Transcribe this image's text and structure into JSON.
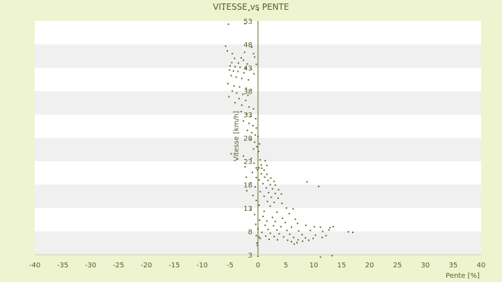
{
  "chart_data": {
    "type": "scatter",
    "title": "VITESSE vs PENTE",
    "xlabel": "Pente [%]",
    "ylabel": "Vitesse [km/h]",
    "xlim": [
      -40,
      40
    ],
    "ylim": [
      3,
      53
    ],
    "x_ticks": [
      "-40",
      "-35",
      "-30",
      "-25",
      "-20",
      "-15",
      "-10",
      "-5",
      "0",
      "5",
      "10",
      "15",
      "20",
      "25",
      "30",
      "35",
      "40"
    ],
    "y_ticks": [
      "3",
      "8",
      "13",
      "18",
      "23",
      "28",
      "33",
      "38",
      "43",
      "48",
      "53"
    ],
    "grid": "alternating horizontal bands",
    "legend": "none",
    "colors": {
      "background": "#eef4cf",
      "band_light": "#ffffff",
      "band_dark": "#f0f0f0",
      "axis": "#5d6b20",
      "points": "#5d6b20",
      "text": "#545e2a"
    },
    "points": [
      [
        -6.2,
        55.5
      ],
      [
        0,
        55.3
      ],
      [
        -5.3,
        52.3
      ],
      [
        -2.3,
        52.4
      ],
      [
        -1.6,
        55.3
      ],
      [
        -5.8,
        47.6
      ],
      [
        -5.5,
        46.6
      ],
      [
        -1.1,
        47.4
      ],
      [
        -4.6,
        46.0
      ],
      [
        -2.4,
        46.3
      ],
      [
        -0.8,
        46.0
      ],
      [
        -0.6,
        45.3
      ],
      [
        -4.2,
        45.0
      ],
      [
        -3.0,
        45.1
      ],
      [
        -2.6,
        44.6
      ],
      [
        -4.7,
        44.1
      ],
      [
        -3.5,
        44.0
      ],
      [
        -1.9,
        43.8
      ],
      [
        -0.3,
        43.7
      ],
      [
        -5.0,
        43.4
      ],
      [
        -4.1,
        43.2
      ],
      [
        -3.2,
        43.1
      ],
      [
        -2.2,
        42.9
      ],
      [
        -1.2,
        42.7
      ],
      [
        -5.1,
        42.5
      ],
      [
        -4.4,
        42.3
      ],
      [
        -3.6,
        42.2
      ],
      [
        -2.5,
        41.9
      ],
      [
        -0.7,
        41.7
      ],
      [
        -4.8,
        41.3
      ],
      [
        -3.9,
        41.0
      ],
      [
        -2.9,
        40.7
      ],
      [
        -1.7,
        40.4
      ],
      [
        -5.4,
        39.6
      ],
      [
        -4.3,
        39.1
      ],
      [
        -3.3,
        38.9
      ],
      [
        -2.1,
        38.6
      ],
      [
        -1.2,
        38.3
      ],
      [
        -4.6,
        38.0
      ],
      [
        -3.8,
        37.6
      ],
      [
        -2.7,
        37.3
      ],
      [
        -1.8,
        37.1
      ],
      [
        -5.2,
        36.8
      ],
      [
        -3.4,
        36.4
      ],
      [
        -2.2,
        36.0
      ],
      [
        -4.1,
        35.5
      ],
      [
        -2.9,
        35.0
      ],
      [
        -1.6,
        34.6
      ],
      [
        -0.8,
        34.2
      ],
      [
        -3.0,
        33.6
      ],
      [
        -2.0,
        33.1
      ],
      [
        -1.3,
        32.6
      ],
      [
        -0.4,
        32.1
      ],
      [
        -2.6,
        31.6
      ],
      [
        -1.6,
        31.1
      ],
      [
        -0.9,
        30.6
      ],
      [
        -0.3,
        30.1
      ],
      [
        -1.9,
        29.6
      ],
      [
        -1.1,
        29.1
      ],
      [
        -0.5,
        28.6
      ],
      [
        0.0,
        28.3
      ],
      [
        -1.3,
        27.6
      ],
      [
        -0.6,
        27.1
      ],
      [
        0.3,
        26.7
      ],
      [
        -0.2,
        26.1
      ],
      [
        -0.8,
        25.6
      ],
      [
        0.1,
        25.1
      ],
      [
        -4.8,
        24.6
      ],
      [
        -2.6,
        24.1
      ],
      [
        -1.2,
        23.6
      ],
      [
        0.4,
        23.3
      ],
      [
        1.3,
        23.1
      ],
      [
        -0.7,
        22.6
      ],
      [
        0.6,
        22.2
      ],
      [
        1.6,
        22.1
      ],
      [
        -2.3,
        21.8
      ],
      [
        -0.3,
        21.6
      ],
      [
        0.2,
        21.6
      ],
      [
        0.7,
        21.5
      ],
      [
        -0.1,
        21.2
      ],
      [
        1.1,
        21.1
      ],
      [
        -1.0,
        20.6
      ],
      [
        0.6,
        20.3
      ],
      [
        1.6,
        20.2
      ],
      [
        -2.1,
        19.6
      ],
      [
        -0.3,
        19.5
      ],
      [
        1.2,
        19.6
      ],
      [
        2.3,
        19.4
      ],
      [
        0.2,
        19.0
      ],
      [
        1.8,
        18.9
      ],
      [
        2.9,
        18.7
      ],
      [
        -1.3,
        18.4
      ],
      [
        0.9,
        18.2
      ],
      [
        2.2,
        18.0
      ],
      [
        3.1,
        17.9
      ],
      [
        -0.5,
        17.5
      ],
      [
        1.5,
        17.3
      ],
      [
        2.6,
        17.1
      ],
      [
        3.7,
        16.9
      ],
      [
        -2.0,
        16.7
      ],
      [
        0.4,
        16.5
      ],
      [
        1.9,
        16.3
      ],
      [
        3.1,
        16.1
      ],
      [
        4.2,
        16.0
      ],
      [
        -0.9,
        15.7
      ],
      [
        1.1,
        15.5
      ],
      [
        2.4,
        15.3
      ],
      [
        3.6,
        15.1
      ],
      [
        -0.3,
        14.6
      ],
      [
        1.7,
        14.4
      ],
      [
        2.9,
        14.2
      ],
      [
        4.3,
        14.0
      ],
      [
        0.2,
        13.6
      ],
      [
        2.2,
        13.4
      ],
      [
        5.1,
        13.0
      ],
      [
        6.3,
        12.8
      ],
      [
        -1.3,
        12.6
      ],
      [
        1.1,
        12.3
      ],
      [
        3.4,
        12.1
      ],
      [
        5.6,
        11.8
      ],
      [
        -0.6,
        11.6
      ],
      [
        0.9,
        11.2
      ],
      [
        2.6,
        11.0
      ],
      [
        4.4,
        10.8
      ],
      [
        6.7,
        10.6
      ],
      [
        0.3,
        10.4
      ],
      [
        1.6,
        10.2
      ],
      [
        3.1,
        10.1
      ],
      [
        4.9,
        9.9
      ],
      [
        7.1,
        9.7
      ],
      [
        -0.4,
        9.5
      ],
      [
        1.3,
        9.3
      ],
      [
        2.8,
        9.2
      ],
      [
        4.1,
        9.0
      ],
      [
        6.0,
        8.9
      ],
      [
        8.6,
        9.3
      ],
      [
        10.1,
        9.0
      ],
      [
        11.2,
        8.9
      ],
      [
        12.9,
        8.8
      ],
      [
        13.5,
        9.0
      ],
      [
        0.0,
        8.5
      ],
      [
        1.8,
        8.4
      ],
      [
        3.4,
        8.3
      ],
      [
        5.2,
        8.2
      ],
      [
        7.3,
        8.1
      ],
      [
        9.4,
        8.2
      ],
      [
        11.6,
        8.0
      ],
      [
        12.7,
        8.3
      ],
      [
        16.2,
        7.9
      ],
      [
        17.0,
        7.8
      ],
      [
        0.7,
        7.8
      ],
      [
        2.2,
        7.6
      ],
      [
        3.8,
        7.5
      ],
      [
        5.7,
        7.4
      ],
      [
        7.9,
        7.3
      ],
      [
        10.3,
        7.2
      ],
      [
        12.2,
        7.1
      ],
      [
        -0.3,
        7.1
      ],
      [
        1.4,
        7.0
      ],
      [
        2.9,
        6.9
      ],
      [
        4.6,
        6.8
      ],
      [
        6.4,
        6.7
      ],
      [
        8.5,
        6.6
      ],
      [
        9.9,
        6.5
      ],
      [
        11.5,
        6.7
      ],
      [
        0.4,
        6.5
      ],
      [
        2.0,
        6.3
      ],
      [
        3.5,
        6.2
      ],
      [
        5.3,
        6.1
      ],
      [
        7.2,
        6.2
      ],
      [
        9.1,
        6.1
      ],
      [
        6.0,
        5.8
      ],
      [
        8.0,
        5.9
      ],
      [
        7.0,
        5.6
      ],
      [
        6.5,
        5.3
      ],
      [
        -0.2,
        5.5
      ],
      [
        0.2,
        6.8
      ],
      [
        0.0,
        2.7
      ],
      [
        11.2,
        2.5
      ],
      [
        13.3,
        2.8
      ],
      [
        8.8,
        18.6
      ],
      [
        10.9,
        17.6
      ],
      [
        -0.1,
        5.0
      ]
    ]
  }
}
